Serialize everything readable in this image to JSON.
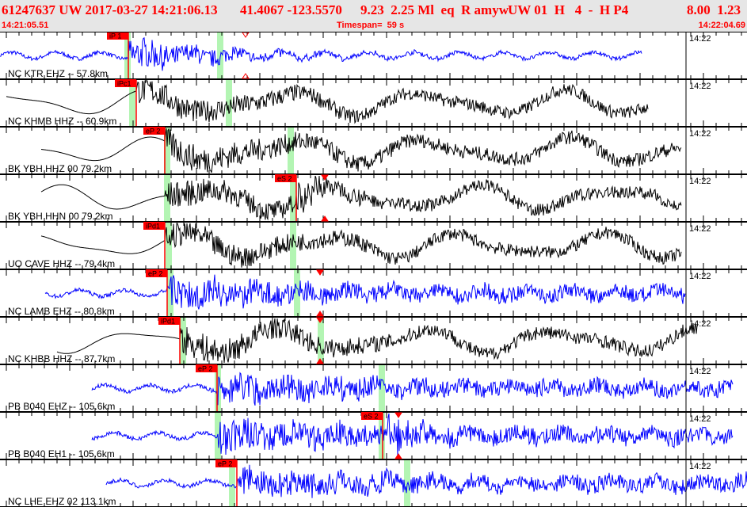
{
  "header": {
    "event": "61247637 UW 2017-03-27 14:21:06.13",
    "location": "41.4067 -123.5570",
    "magnitude": "9.23  2.25 Ml  eq  R amyw",
    "solution": "UW 01  H   4  -  H P4",
    "quality": "8.00  1.23",
    "start_time": "14:21:05.51",
    "timespan": "Timespan=  59 s",
    "end_time": "14:22:04.69"
  },
  "time_marker": "14:22",
  "colors": {
    "header_text": "#ff0000",
    "header_bg": "#e6e6e6",
    "pick": "#ff0000",
    "pick_window": "#b3f5b3",
    "vertical": "#0000ff",
    "horizontal": "#000000"
  },
  "channels": [
    {
      "label": "NC KTR EHZ -- 57.8km",
      "color": "#0000ff",
      "picks": [
        "iP 1"
      ]
    },
    {
      "label": "NC KHMB HHZ -- 60.9km",
      "color": "#000000",
      "picks": [
        "iPc1"
      ]
    },
    {
      "label": "BK YBH HHZ 00 79.2km",
      "color": "#000000",
      "picks": [
        "eP 2"
      ]
    },
    {
      "label": "BK YBH HHN 00 79.2km",
      "color": "#000000",
      "picks": [
        "eS 2"
      ]
    },
    {
      "label": "UO CAVE HHZ -- 79.4km",
      "color": "#000000",
      "picks": [
        "iPd1"
      ]
    },
    {
      "label": "NC LAMB EHZ -- 80.8km",
      "color": "#0000ff",
      "picks": [
        "eP 2"
      ]
    },
    {
      "label": "NC KHBB HHZ -- 87.7km",
      "color": "#000000",
      "picks": [
        "iPd1"
      ]
    },
    {
      "label": "PB B040 EHZ -- 105.6km",
      "color": "#0000ff",
      "picks": [
        "eP 2"
      ]
    },
    {
      "label": "PB B040 EH1 -- 105.6km",
      "color": "#0000ff",
      "picks": [
        "eS 2"
      ]
    },
    {
      "label": "NC LHE EHZ 02 113.1km",
      "color": "#0000ff",
      "picks": [
        "eP 2"
      ]
    }
  ]
}
